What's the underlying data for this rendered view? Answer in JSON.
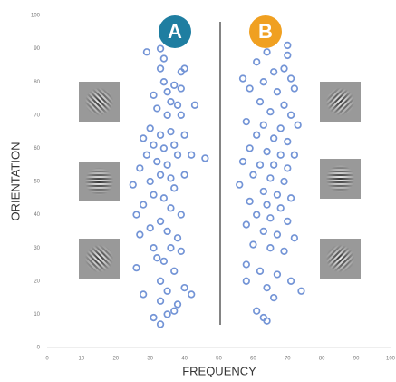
{
  "chart_data": {
    "type": "scatter",
    "x_label": "FREQUENCY",
    "y_label": "ORIENTATION",
    "annotations": [
      "A",
      "B"
    ],
    "color": "#7394d6",
    "xlim": [
      0,
      100
    ],
    "xticks": [
      0,
      10,
      20,
      30,
      40,
      50,
      60,
      70,
      80,
      90,
      100
    ],
    "ylim": [
      0,
      100
    ],
    "yticks": [
      0,
      10,
      20,
      30,
      40,
      50,
      60,
      70,
      80,
      90,
      100
    ],
    "x": [
      29,
      33,
      34,
      33,
      39,
      40,
      34,
      37,
      31,
      35,
      39,
      36,
      38,
      32,
      43,
      35,
      39,
      30,
      33,
      28,
      36,
      40,
      31,
      34,
      37,
      38,
      29,
      32,
      35,
      42,
      46,
      27,
      33,
      36,
      40,
      30,
      25,
      37,
      31,
      34,
      28,
      36,
      39,
      26,
      33,
      30,
      35,
      38,
      27,
      31,
      36,
      39,
      32,
      34,
      26,
      37,
      33,
      40,
      35,
      28,
      42,
      33,
      38,
      35,
      31,
      37,
      33,
      70,
      64,
      70,
      61,
      69,
      66,
      57,
      63,
      71,
      59,
      67,
      72,
      62,
      69,
      65,
      71,
      58,
      63,
      68,
      73,
      61,
      66,
      70,
      59,
      64,
      68,
      72,
      57,
      62,
      66,
      70,
      60,
      65,
      69,
      56,
      63,
      67,
      71,
      59,
      64,
      68,
      61,
      65,
      70,
      58,
      63,
      67,
      72,
      60,
      65,
      69,
      58,
      62,
      67,
      71,
      58,
      64,
      74,
      66,
      61,
      64,
      63
    ],
    "values": [
      89,
      90,
      87,
      84,
      83,
      84,
      80,
      79,
      76,
      77,
      78,
      74,
      73,
      72,
      73,
      70,
      70,
      66,
      64,
      63,
      65,
      64,
      61,
      60,
      61,
      58,
      58,
      56,
      55,
      58,
      57,
      54,
      52,
      51,
      52,
      50,
      49,
      48,
      46,
      45,
      43,
      42,
      40,
      40,
      38,
      36,
      35,
      33,
      34,
      30,
      30,
      29,
      27,
      26,
      24,
      23,
      20,
      18,
      17,
      16,
      16,
      14,
      13,
      10,
      9,
      11,
      7,
      91,
      89,
      88,
      86,
      84,
      83,
      81,
      80,
      81,
      78,
      77,
      78,
      74,
      73,
      71,
      70,
      68,
      67,
      66,
      67,
      64,
      63,
      62,
      60,
      59,
      58,
      58,
      56,
      55,
      55,
      54,
      52,
      51,
      50,
      49,
      47,
      46,
      45,
      44,
      43,
      42,
      40,
      39,
      38,
      37,
      35,
      34,
      33,
      31,
      30,
      29,
      25,
      23,
      22,
      20,
      20,
      18,
      17,
      15,
      11,
      8,
      9
    ]
  }
}
